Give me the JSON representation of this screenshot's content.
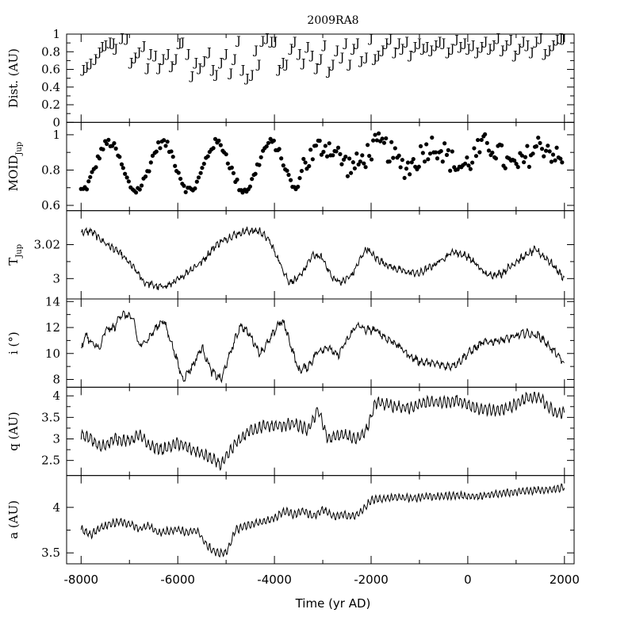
{
  "chart_data": {
    "type": "line",
    "title": "2009RA8",
    "xlabel": "Time (yr AD)",
    "xlim": [
      -8300,
      2200
    ],
    "x_ticks": [
      "-8000",
      "-6000",
      "-4000",
      "-2000",
      "0",
      "2000"
    ],
    "panels": [
      {
        "id": "dist",
        "kind": "marker",
        "marker": "J",
        "ylabel": "Dist. (AU)",
        "ylim": [
          0,
          1
        ],
        "y_ticks": [
          "0",
          "0.2",
          "0.4",
          "0.6",
          "0.8",
          "1"
        ],
        "x": [
          -7950,
          -7880,
          -7800,
          -7700,
          -7620,
          -7560,
          -7490,
          -7400,
          -7330,
          -7280,
          -7150,
          -7050,
          -6960,
          -6880,
          -6800,
          -6700,
          -6620,
          -6560,
          -6460,
          -6380,
          -6300,
          -6200,
          -6120,
          -6040,
          -5960,
          -5900,
          -5780,
          -5700,
          -5620,
          -5540,
          -5450,
          -5350,
          -5270,
          -5200,
          -5100,
          -5000,
          -4900,
          -4820,
          -4740,
          -4650,
          -4560,
          -4460,
          -4380,
          -4320,
          -4240,
          -4150,
          -4060,
          -3980,
          -3900,
          -3820,
          -3750,
          -3650,
          -3580,
          -3480,
          -3400,
          -3310,
          -3220,
          -3120,
          -3040,
          -2960,
          -2870,
          -2790,
          -2700,
          -2600,
          -2520,
          -2440,
          -2360,
          -2280,
          -2200,
          -2100,
          -2000,
          -1920,
          -1850,
          -1760,
          -1680,
          -1600,
          -1500,
          -1420,
          -1350,
          -1260,
          -1180,
          -1090,
          -1000,
          -920,
          -840,
          -750,
          -660,
          -580,
          -500,
          -400,
          -320,
          -230,
          -150,
          -60,
          20,
          110,
          200,
          290,
          370,
          460,
          540,
          630,
          720,
          800,
          890,
          980,
          1070,
          1150,
          1240,
          1330,
          1420,
          1510,
          1600,
          1690,
          1770,
          1850,
          1930,
          1980
        ],
        "y": [
          0.6,
          0.63,
          0.67,
          0.72,
          0.8,
          0.86,
          0.88,
          0.91,
          0.9,
          0.84,
          0.96,
          0.95,
          0.68,
          0.74,
          0.8,
          0.87,
          0.62,
          0.78,
          0.76,
          0.62,
          0.72,
          0.78,
          0.64,
          0.72,
          0.9,
          0.91,
          0.78,
          0.53,
          0.68,
          0.62,
          0.7,
          0.8,
          0.6,
          0.54,
          0.68,
          0.78,
          0.56,
          0.72,
          0.93,
          0.6,
          0.5,
          0.54,
          0.82,
          0.66,
          0.93,
          0.96,
          0.92,
          0.92,
          0.6,
          0.68,
          0.66,
          0.84,
          0.92,
          0.78,
          0.67,
          0.86,
          0.76,
          0.62,
          0.72,
          0.88,
          0.58,
          0.66,
          0.82,
          0.74,
          0.9,
          0.66,
          0.84,
          0.9,
          0.7,
          0.74,
          0.95,
          0.72,
          0.76,
          0.82,
          0.9,
          0.95,
          0.8,
          0.9,
          0.84,
          0.92,
          0.76,
          0.86,
          0.9,
          0.84,
          0.86,
          0.82,
          0.88,
          0.92,
          0.9,
          0.8,
          0.84,
          0.94,
          0.86,
          0.9,
          0.84,
          0.88,
          0.8,
          0.86,
          0.92,
          0.84,
          0.88,
          0.96,
          0.82,
          0.88,
          0.94,
          0.76,
          0.84,
          0.92,
          0.88,
          0.8,
          0.92,
          0.96,
          0.78,
          0.82,
          0.88,
          0.94,
          0.96,
          0.95
        ]
      },
      {
        "id": "moid",
        "kind": "scatter",
        "ylabel": "MOID",
        "ylabel_sub": "Jup",
        "ylim": [
          0.57,
          1.07
        ],
        "y_ticks": [
          "0.6",
          "0.8",
          "1"
        ],
        "base": {
          "mean": 0.82,
          "amp": 0.135,
          "amp2": 0.06,
          "period": 1120,
          "phase": 130,
          "trans": -3500,
          "noise": 0.025,
          "noise2": 0.07,
          "step": 38
        }
      },
      {
        "id": "tjup",
        "kind": "line",
        "ylabel": "T",
        "ylabel_sub": "Jup",
        "ylim": [
          2.988,
          3.04
        ],
        "y_ticks": [
          "3",
          "3.02"
        ],
        "keys": [
          [
            -8000,
            3.027
          ],
          [
            -7800,
            3.028
          ],
          [
            -7500,
            3.021
          ],
          [
            -7200,
            3.015
          ],
          [
            -6900,
            3.006
          ],
          [
            -6700,
            2.998
          ],
          [
            -6400,
            2.995
          ],
          [
            -6200,
            2.996
          ],
          [
            -6000,
            2.999
          ],
          [
            -5800,
            3.004
          ],
          [
            -5500,
            3.01
          ],
          [
            -5200,
            3.02
          ],
          [
            -4900,
            3.025
          ],
          [
            -4600,
            3.028
          ],
          [
            -4300,
            3.028
          ],
          [
            -4100,
            3.022
          ],
          [
            -3900,
            3.01
          ],
          [
            -3700,
            2.998
          ],
          [
            -3500,
            3.0
          ],
          [
            -3200,
            3.014
          ],
          [
            -3000,
            3.012
          ],
          [
            -2800,
            3.0
          ],
          [
            -2600,
            2.998
          ],
          [
            -2400,
            3.002
          ],
          [
            -2100,
            3.018
          ],
          [
            -1900,
            3.012
          ],
          [
            -1600,
            3.007
          ],
          [
            -1300,
            3.004
          ],
          [
            -1000,
            3.003
          ],
          [
            -700,
            3.008
          ],
          [
            -300,
            3.016
          ],
          [
            0,
            3.013
          ],
          [
            400,
            3.002
          ],
          [
            700,
            3.003
          ],
          [
            1000,
            3.01
          ],
          [
            1400,
            3.017
          ],
          [
            1700,
            3.01
          ],
          [
            2000,
            3.0
          ]
        ],
        "ripple": 0.0012,
        "rperiod": 90,
        "noise": 0.0015
      },
      {
        "id": "incl",
        "kind": "line",
        "ylabel": "i (°)",
        "ylim": [
          7.4,
          14.2
        ],
        "y_ticks": [
          "8",
          "10",
          "12",
          "14"
        ],
        "keys": [
          [
            -8000,
            10.3
          ],
          [
            -7900,
            11.5
          ],
          [
            -7800,
            10.8
          ],
          [
            -7600,
            10.4
          ],
          [
            -7500,
            11.8
          ],
          [
            -7300,
            12.0
          ],
          [
            -7200,
            13.0
          ],
          [
            -7000,
            12.9
          ],
          [
            -6900,
            12.4
          ],
          [
            -6800,
            10.5
          ],
          [
            -6600,
            11.2
          ],
          [
            -6400,
            12.2
          ],
          [
            -6300,
            12.6
          ],
          [
            -6100,
            10.5
          ],
          [
            -5900,
            8.0
          ],
          [
            -5700,
            9.0
          ],
          [
            -5500,
            10.5
          ],
          [
            -5300,
            8.6
          ],
          [
            -5100,
            8.0
          ],
          [
            -4900,
            10.2
          ],
          [
            -4700,
            12.2
          ],
          [
            -4500,
            11.4
          ],
          [
            -4300,
            10.0
          ],
          [
            -4100,
            11.0
          ],
          [
            -3900,
            12.4
          ],
          [
            -3800,
            12.3
          ],
          [
            -3650,
            10.5
          ],
          [
            -3500,
            8.7
          ],
          [
            -3300,
            9.0
          ],
          [
            -3100,
            10.2
          ],
          [
            -2900,
            10.5
          ],
          [
            -2700,
            9.8
          ],
          [
            -2500,
            11.0
          ],
          [
            -2300,
            12.2
          ],
          [
            -2100,
            11.8
          ],
          [
            -1900,
            11.8
          ],
          [
            -1700,
            11.2
          ],
          [
            -1500,
            10.8
          ],
          [
            -1200,
            9.8
          ],
          [
            -1000,
            9.4
          ],
          [
            -700,
            9.2
          ],
          [
            -400,
            9.0
          ],
          [
            -200,
            9.3
          ],
          [
            0,
            10.0
          ],
          [
            300,
            10.8
          ],
          [
            600,
            11.0
          ],
          [
            900,
            11.2
          ],
          [
            1200,
            11.6
          ],
          [
            1500,
            11.3
          ],
          [
            1800,
            10.1
          ],
          [
            2000,
            9.2
          ]
        ],
        "ripple": 0.18,
        "rperiod": 110,
        "noise": 0.22
      },
      {
        "id": "q",
        "kind": "line",
        "ylabel": "q (AU)",
        "ylim": [
          2.15,
          4.2
        ],
        "y_ticks": [
          "2.5",
          "3",
          "3.5",
          "4"
        ],
        "keys": [
          [
            -8000,
            3.1
          ],
          [
            -7800,
            3.0
          ],
          [
            -7600,
            2.8
          ],
          [
            -7300,
            3.0
          ],
          [
            -7000,
            2.95
          ],
          [
            -6800,
            3.1
          ],
          [
            -6600,
            2.85
          ],
          [
            -6300,
            2.75
          ],
          [
            -6000,
            2.9
          ],
          [
            -5700,
            2.75
          ],
          [
            -5400,
            2.6
          ],
          [
            -5100,
            2.4
          ],
          [
            -4800,
            2.9
          ],
          [
            -4500,
            3.2
          ],
          [
            -4200,
            3.3
          ],
          [
            -3900,
            3.3
          ],
          [
            -3600,
            3.35
          ],
          [
            -3300,
            3.2
          ],
          [
            -3100,
            3.7
          ],
          [
            -2900,
            3.0
          ],
          [
            -2600,
            3.1
          ],
          [
            -2300,
            3.0
          ],
          [
            -2100,
            3.2
          ],
          [
            -1900,
            3.85
          ],
          [
            -1500,
            3.75
          ],
          [
            -1200,
            3.7
          ],
          [
            -900,
            3.85
          ],
          [
            -500,
            3.85
          ],
          [
            -200,
            3.9
          ],
          [
            200,
            3.7
          ],
          [
            600,
            3.65
          ],
          [
            900,
            3.75
          ],
          [
            1200,
            3.95
          ],
          [
            1500,
            3.95
          ],
          [
            1800,
            3.6
          ],
          [
            2000,
            3.6
          ]
        ],
        "ripple": 0.11,
        "rperiod": 85,
        "noise": 0.05
      },
      {
        "id": "a",
        "kind": "line",
        "ylabel": "a (AU)",
        "ylim": [
          3.38,
          4.35
        ],
        "y_ticks": [
          "3.5",
          "4"
        ],
        "keys": [
          [
            -8000,
            3.76
          ],
          [
            -7800,
            3.7
          ],
          [
            -7600,
            3.78
          ],
          [
            -7400,
            3.82
          ],
          [
            -7200,
            3.84
          ],
          [
            -7000,
            3.82
          ],
          [
            -6800,
            3.76
          ],
          [
            -6600,
            3.8
          ],
          [
            -6400,
            3.72
          ],
          [
            -6200,
            3.74
          ],
          [
            -6000,
            3.76
          ],
          [
            -5800,
            3.72
          ],
          [
            -5600,
            3.75
          ],
          [
            -5400,
            3.58
          ],
          [
            -5200,
            3.5
          ],
          [
            -5000,
            3.5
          ],
          [
            -4800,
            3.75
          ],
          [
            -4600,
            3.8
          ],
          [
            -4400,
            3.82
          ],
          [
            -4200,
            3.85
          ],
          [
            -4000,
            3.88
          ],
          [
            -3800,
            3.96
          ],
          [
            -3600,
            3.92
          ],
          [
            -3400,
            3.96
          ],
          [
            -3200,
            3.9
          ],
          [
            -3000,
            3.98
          ],
          [
            -2800,
            3.9
          ],
          [
            -2600,
            3.92
          ],
          [
            -2400,
            3.9
          ],
          [
            -2200,
            3.95
          ],
          [
            -2000,
            4.08
          ],
          [
            -1700,
            4.1
          ],
          [
            -1400,
            4.11
          ],
          [
            -1100,
            4.1
          ],
          [
            -800,
            4.12
          ],
          [
            -500,
            4.12
          ],
          [
            -200,
            4.13
          ],
          [
            200,
            4.12
          ],
          [
            600,
            4.15
          ],
          [
            1000,
            4.17
          ],
          [
            1400,
            4.19
          ],
          [
            1800,
            4.2
          ],
          [
            2000,
            4.22
          ]
        ],
        "ripple": 0.035,
        "rperiod": 80,
        "noise": 0.015
      }
    ]
  }
}
